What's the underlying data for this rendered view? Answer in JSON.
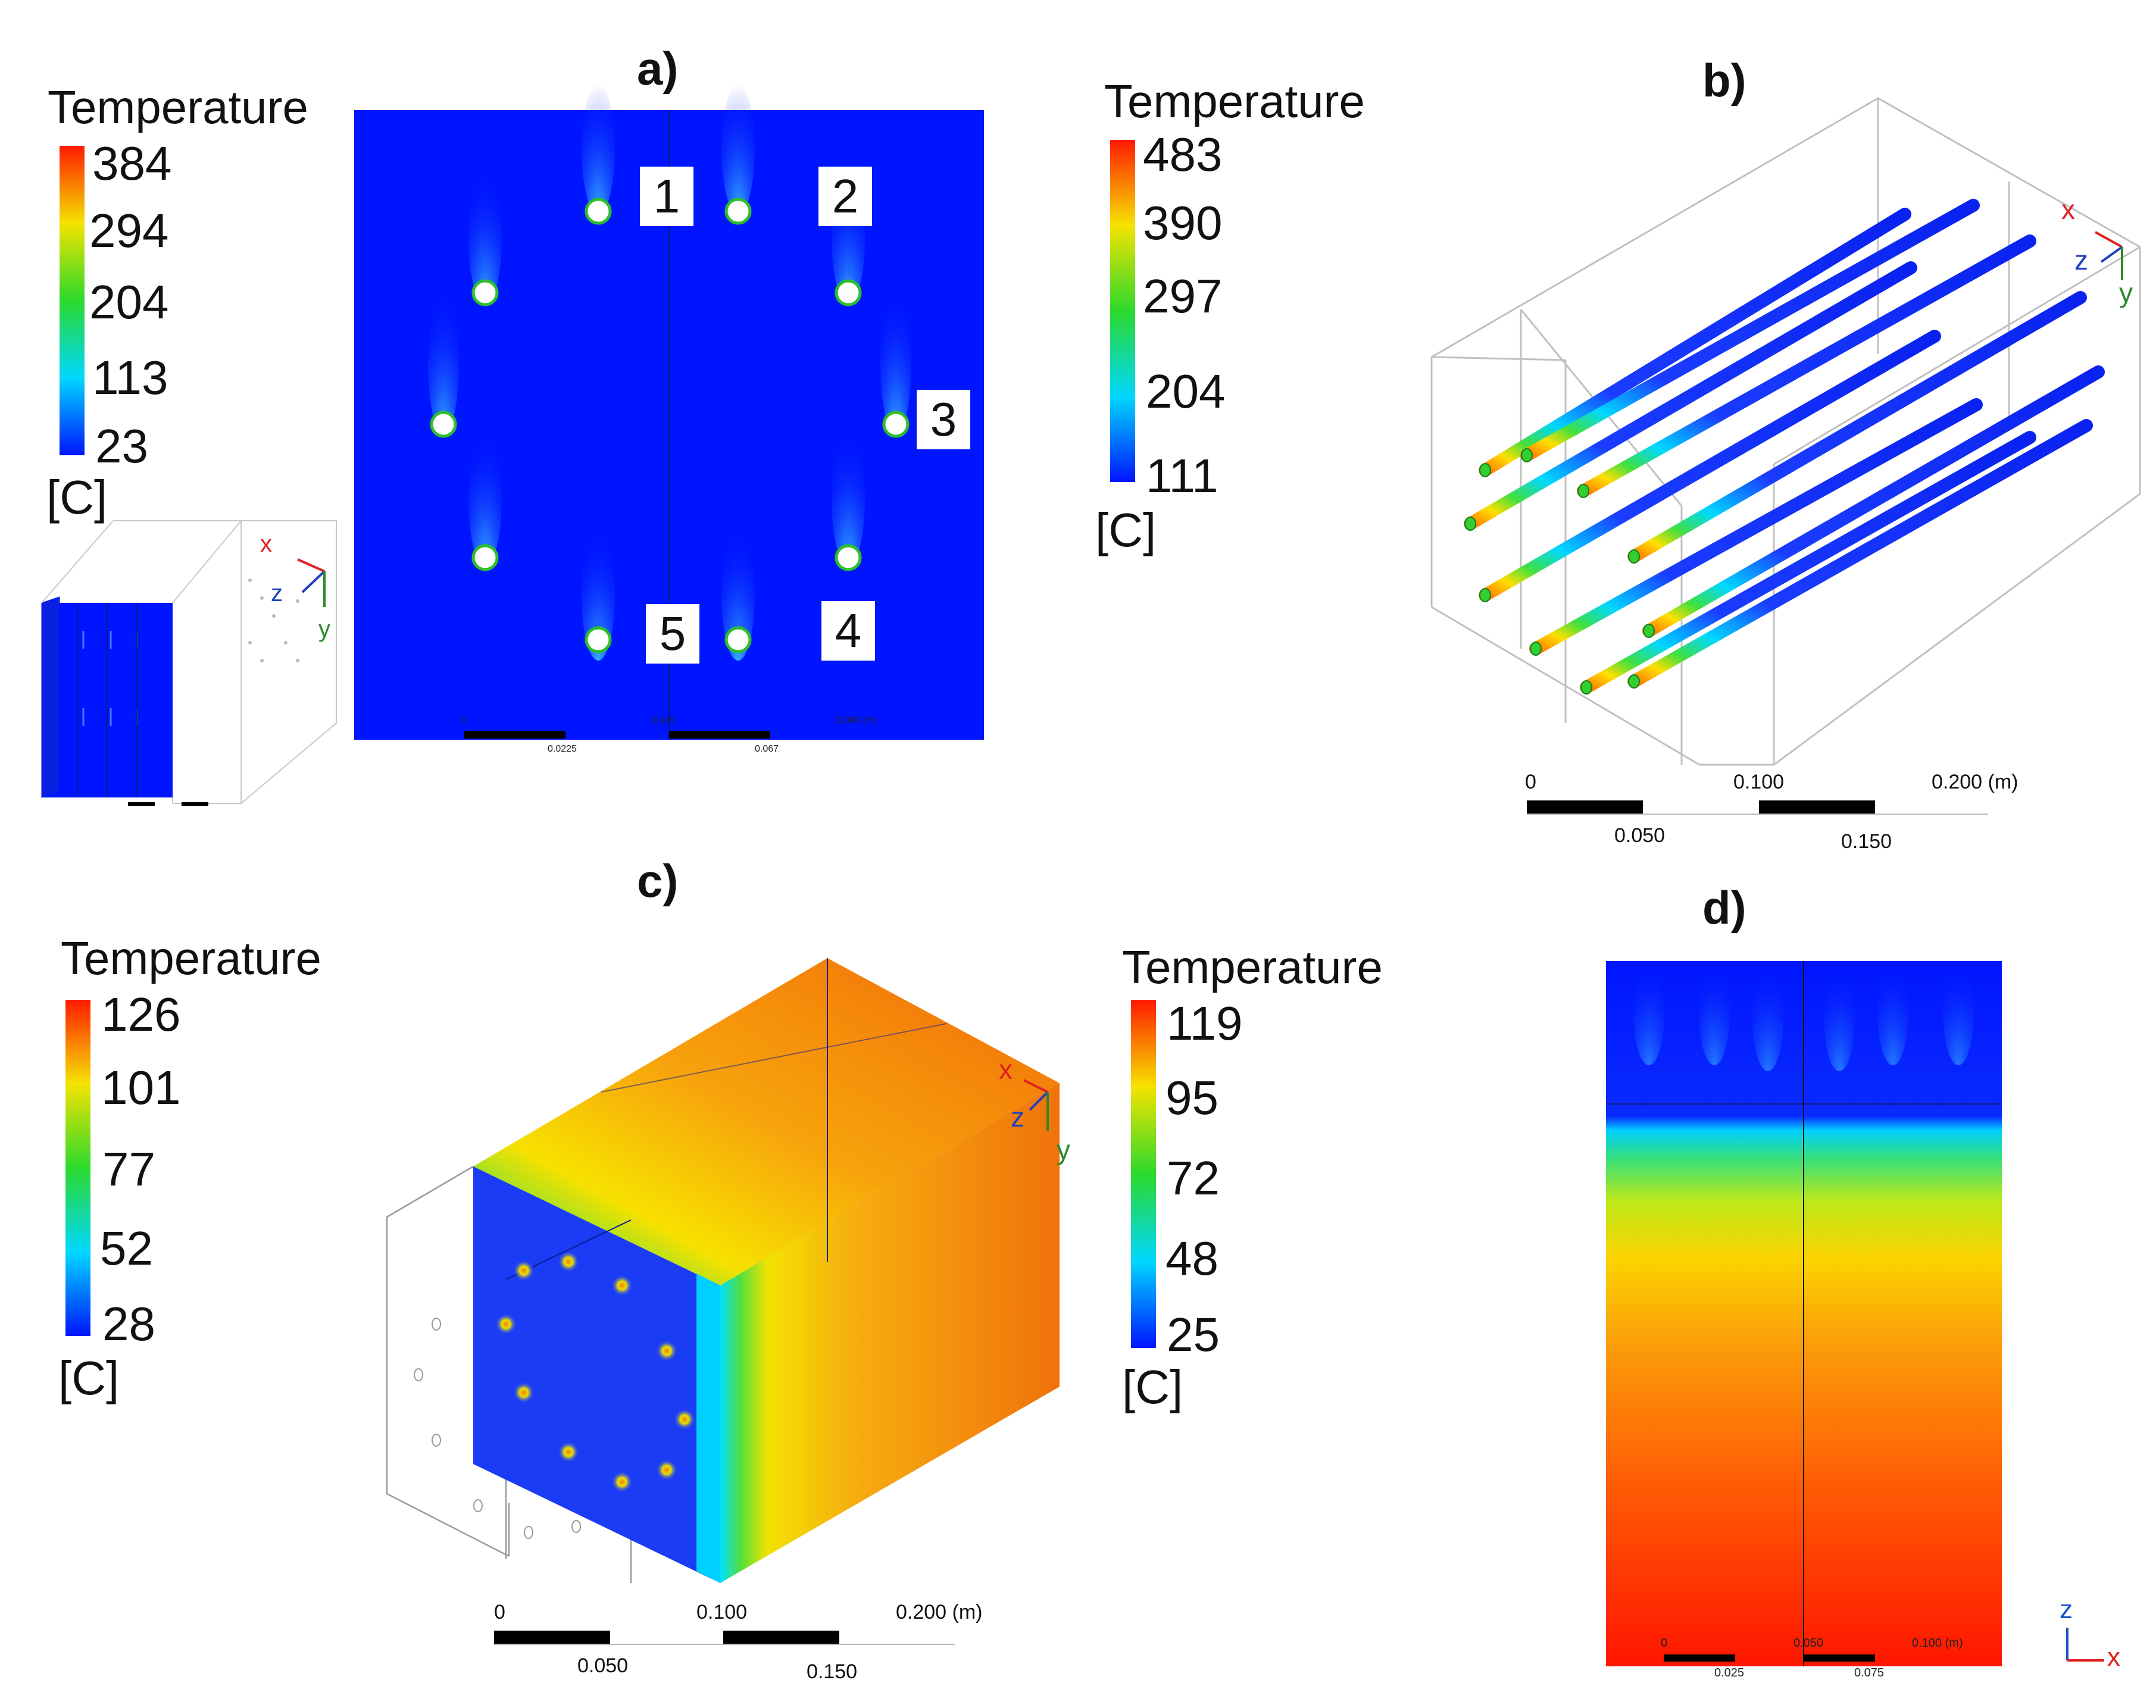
{
  "panels": {
    "a": {
      "label": "a)",
      "legend": {
        "title": "Temperature",
        "ticks": [
          "384",
          "294",
          "204",
          "113",
          "23"
        ],
        "unit": "[C]"
      },
      "tube_labels": [
        "1",
        "2",
        "3",
        "5",
        "4"
      ],
      "scale_bar": {
        "top": [
          "0",
          "0.045",
          "0.090 (m)"
        ],
        "bottom": [
          "0.0225",
          "0.067"
        ]
      },
      "inset_axes": {
        "x": "x",
        "y": "y",
        "z": "z"
      }
    },
    "b": {
      "label": "b)",
      "legend": {
        "title": "Temperature",
        "ticks": [
          "483",
          "390",
          "297",
          "204",
          "111"
        ],
        "unit": "[C]"
      },
      "scale_bar": {
        "top": [
          "0",
          "0.100",
          "0.200 (m)"
        ],
        "bottom": [
          "0.050",
          "0.150"
        ]
      },
      "axes": {
        "x": "x",
        "y": "y",
        "z": "z"
      }
    },
    "c": {
      "label": "c)",
      "legend": {
        "title": "Temperature",
        "ticks": [
          "126",
          "101",
          "77",
          "52",
          "28"
        ],
        "unit": "[C]"
      },
      "scale_bar": {
        "top": [
          "0",
          "0.100",
          "0.200 (m)"
        ],
        "bottom": [
          "0.050",
          "0.150"
        ]
      },
      "axes": {
        "x": "x",
        "y": "y",
        "z": "z"
      }
    },
    "d": {
      "label": "d)",
      "legend": {
        "title": "Temperature",
        "ticks": [
          "119",
          "95",
          "72",
          "48",
          "25"
        ],
        "unit": "[C]"
      },
      "scale_bar": {
        "top": [
          "0",
          "0.050",
          "0.100 (m)"
        ],
        "bottom": [
          "0.025",
          "0.075"
        ]
      },
      "axes": {
        "z": "z",
        "x": "x"
      }
    }
  },
  "colors": {
    "blue": "#0015ff",
    "cyan": "#00e0ff",
    "green": "#2cd92c",
    "yellow": "#f7e200",
    "orange": "#f29a0f",
    "red": "#ff1a00"
  }
}
